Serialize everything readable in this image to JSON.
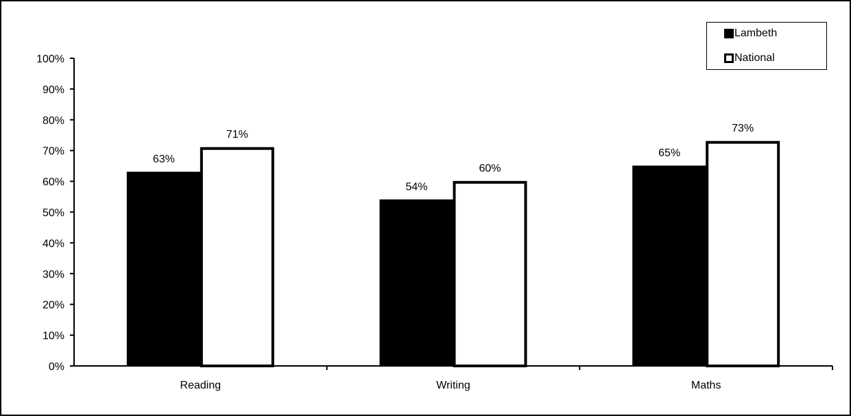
{
  "chart_data": {
    "type": "bar",
    "categories": [
      "Reading",
      "Writing",
      "Maths"
    ],
    "series": [
      {
        "name": "Lambeth",
        "values": [
          63,
          54,
          65
        ],
        "color": "#000000",
        "fill": "#000000"
      },
      {
        "name": "National",
        "values": [
          71,
          60,
          73
        ],
        "color": "#000000",
        "fill": "#ffffff"
      }
    ],
    "data_labels": {
      "Lambeth": [
        "63%",
        "54%",
        "65%"
      ],
      "National": [
        "71%",
        "60%",
        "73%"
      ]
    },
    "y_ticks": [
      "0%",
      "10%",
      "20%",
      "30%",
      "40%",
      "50%",
      "60%",
      "70%",
      "80%",
      "90%",
      "100%"
    ],
    "ylim": [
      0,
      100
    ],
    "unit": "%",
    "grid": false,
    "legend_position": "top-right",
    "title": "",
    "xlabel": "",
    "ylabel": ""
  }
}
